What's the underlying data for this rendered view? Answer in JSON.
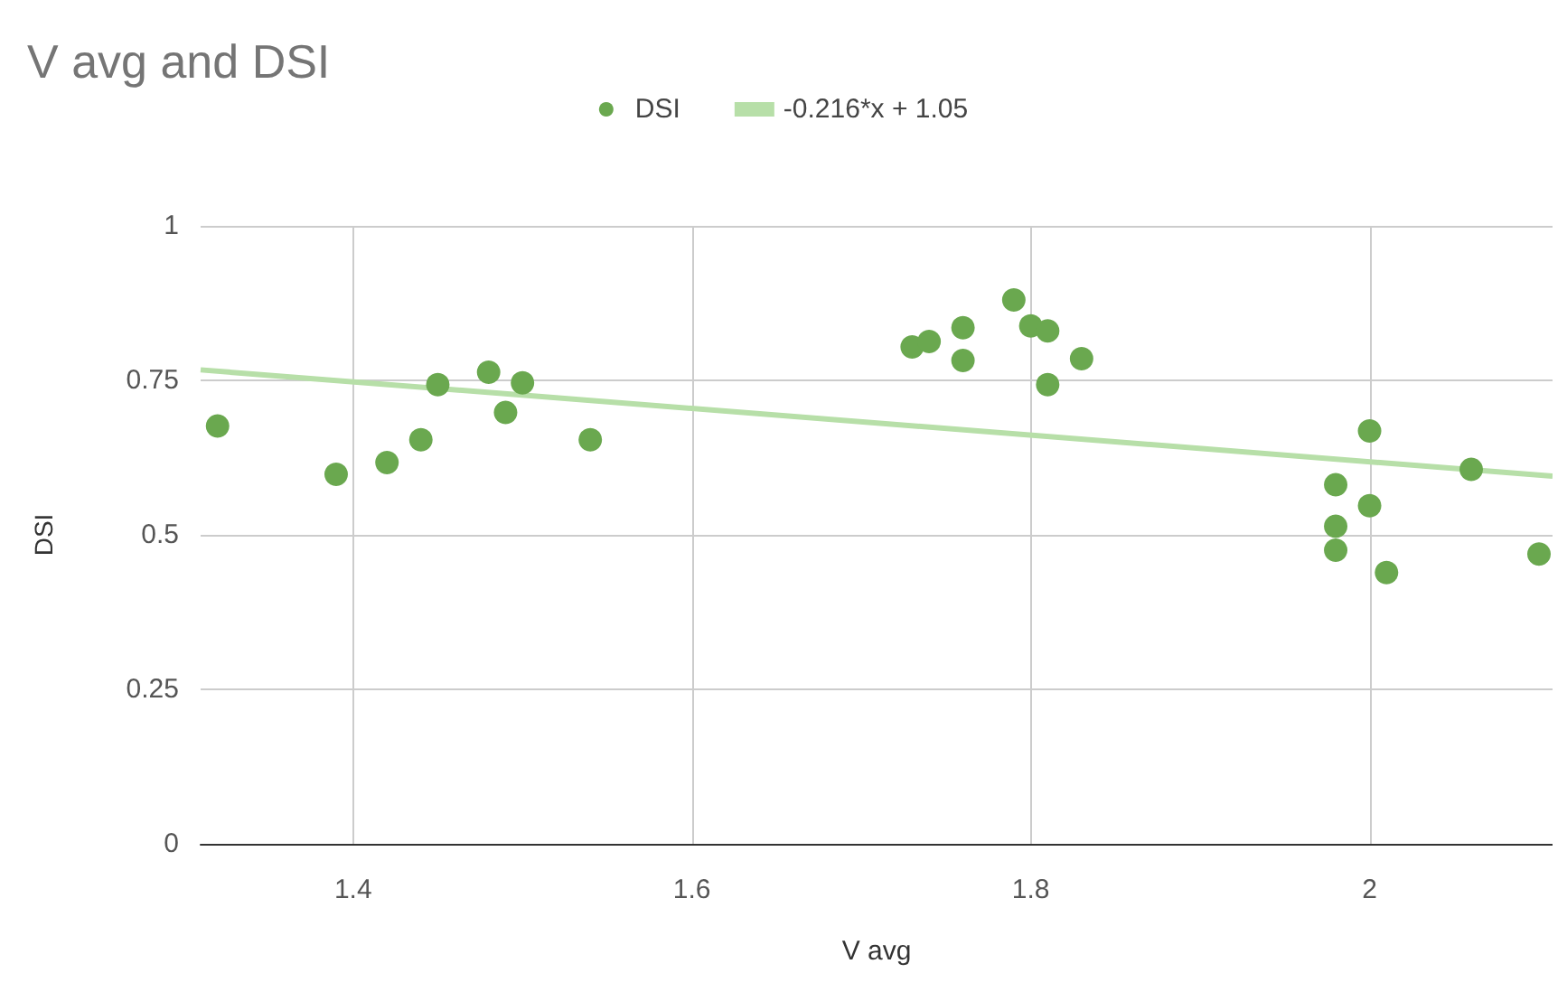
{
  "chart_data": {
    "type": "scatter",
    "title": "V avg and DSI",
    "xlabel": "V avg",
    "ylabel": "DSI",
    "xlim": [
      1.31,
      2.108
    ],
    "xticks": [
      1.4,
      1.6,
      1.8,
      2
    ],
    "ylim": [
      0,
      1
    ],
    "yticks": [
      0,
      0.25,
      0.5,
      0.75,
      1
    ],
    "grid": true,
    "legend": "top",
    "series": [
      {
        "name": "DSI",
        "color": "#6aa84f",
        "marker": "circle",
        "x": [
          1.32,
          1.39,
          1.42,
          1.44,
          1.45,
          1.48,
          1.5,
          1.49,
          1.54,
          1.73,
          1.74,
          1.76,
          1.76,
          1.79,
          1.8,
          1.81,
          1.81,
          1.83,
          1.98,
          1.98,
          1.98,
          2.0,
          2.0,
          2.01,
          2.06,
          2.1
        ],
        "values": [
          0.676,
          0.598,
          0.617,
          0.654,
          0.743,
          0.763,
          0.746,
          0.698,
          0.654,
          0.804,
          0.813,
          0.835,
          0.782,
          0.88,
          0.838,
          0.83,
          0.743,
          0.785,
          0.581,
          0.514,
          0.475,
          0.668,
          0.547,
          0.439,
          0.606,
          0.469
        ]
      },
      {
        "name": "-0.216*x + 1.05",
        "type": "line",
        "color": "#b7dfa8",
        "x": [
          1.31,
          2.108
        ],
        "values": [
          0.767,
          0.595
        ]
      }
    ]
  }
}
